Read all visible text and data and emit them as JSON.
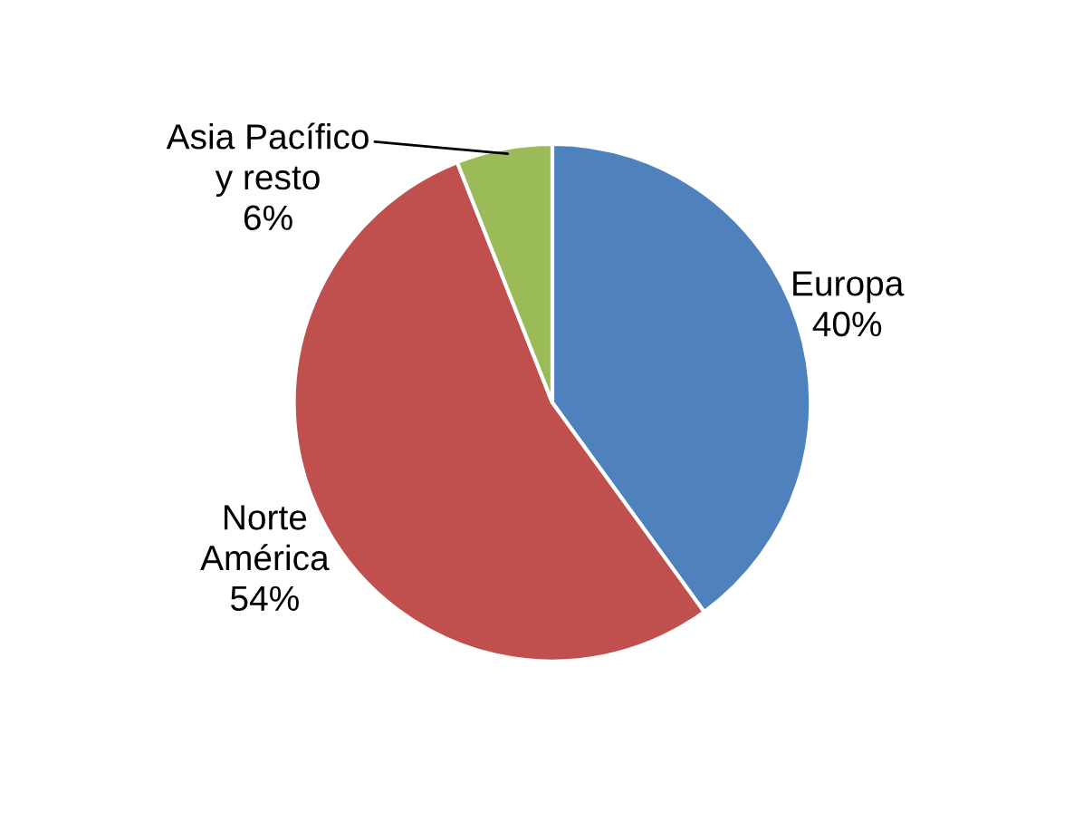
{
  "chart_data": {
    "type": "pie",
    "categories": [
      "Europa",
      "Norte\nAmérica",
      "Asia Pacífico\ny resto"
    ],
    "values": [
      40,
      54,
      6
    ],
    "value_labels": [
      "40%",
      "54%",
      "6%"
    ],
    "colors": [
      "#4f81bd",
      "#c0504d",
      "#9bbb59"
    ],
    "legend": false
  }
}
